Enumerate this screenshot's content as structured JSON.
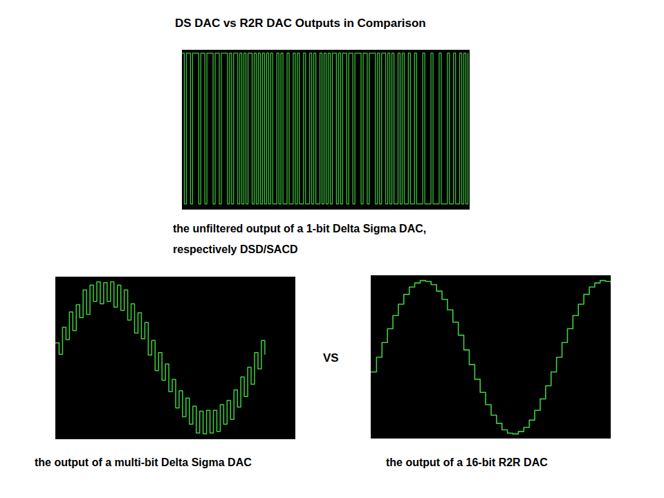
{
  "title": "DS DAC vs R2R DAC Outputs in Comparison",
  "annotation": "VS",
  "chart_data": [
    {
      "type": "line",
      "title": "the unfiltered output of a 1-bit Delta Sigma DAC,",
      "subtitle": "respectively DSD/SACD",
      "line_style": "step",
      "color": "#3fcf3f",
      "grid": false,
      "tick_labels": false,
      "xlim": [
        0,
        140
      ],
      "ylim": [
        -0.04,
        1.02
      ],
      "x": [
        0,
        1,
        2,
        3,
        4,
        5,
        6,
        7,
        8,
        9,
        10,
        11,
        12,
        13,
        14,
        15,
        16,
        17,
        18,
        19,
        20,
        21,
        22,
        23,
        24,
        25,
        26,
        27,
        28,
        29,
        30,
        31,
        32,
        33,
        34,
        35,
        36,
        37,
        38,
        39,
        40,
        41,
        42,
        43,
        44,
        45,
        46,
        47,
        48,
        49,
        50,
        51,
        52,
        53,
        54,
        55,
        56,
        57,
        58,
        59,
        60,
        61,
        62,
        63,
        64,
        65,
        66,
        67,
        68,
        69,
        70,
        71,
        72,
        73,
        74,
        75,
        76,
        77,
        78,
        79,
        80,
        81,
        82,
        83,
        84,
        85,
        86,
        87,
        88,
        89,
        90,
        91,
        92,
        93,
        94,
        95,
        96,
        97,
        98,
        99,
        100,
        101,
        102,
        103,
        104,
        105,
        106,
        107,
        108,
        109,
        110,
        111,
        112,
        113,
        114,
        115,
        116,
        117,
        118,
        119,
        120,
        121,
        122,
        123,
        124,
        125,
        126,
        127,
        128,
        129,
        130,
        131,
        132,
        133,
        134,
        135,
        136,
        137,
        138,
        139
      ],
      "values": [
        1,
        0,
        1,
        1,
        0,
        1,
        1,
        1,
        0,
        1,
        1,
        0,
        1,
        1,
        1,
        0,
        1,
        1,
        0,
        1,
        1,
        1,
        0,
        1,
        0,
        1,
        1,
        0,
        1,
        0,
        1,
        0,
        1,
        1,
        0,
        1,
        0,
        1,
        0,
        1,
        0,
        1,
        0,
        1,
        0,
        0,
        1,
        0,
        1,
        0,
        0,
        1,
        0,
        0,
        1,
        0,
        1,
        0,
        0,
        1,
        0,
        0,
        1,
        0,
        1,
        0,
        0,
        1,
        0,
        1,
        0,
        1,
        0,
        1,
        1,
        0,
        1,
        0,
        1,
        1,
        0,
        1,
        1,
        0,
        1,
        1,
        1,
        0,
        1,
        1,
        0,
        1,
        1,
        1,
        0,
        1,
        0,
        1,
        1,
        0,
        1,
        0,
        1,
        0,
        0,
        1,
        0,
        1,
        0,
        0,
        1,
        0,
        0,
        1,
        0,
        0,
        0,
        1,
        0,
        0,
        0,
        1,
        0,
        0,
        0,
        1,
        0,
        0,
        0,
        1,
        0,
        0,
        1,
        0,
        0,
        1,
        0,
        1,
        0,
        1
      ]
    },
    {
      "type": "line",
      "title": "the output of a multi-bit Delta Sigma DAC",
      "line_style": "step",
      "color": "#3fcf3f",
      "grid": false,
      "tick_labels": false,
      "xlim": [
        0,
        70
      ],
      "ylim": [
        -1,
        1
      ],
      "x": [
        0,
        1,
        2,
        3,
        4,
        5,
        6,
        7,
        8,
        9,
        10,
        11,
        12,
        13,
        14,
        15,
        16,
        17,
        18,
        19,
        20,
        21,
        22,
        23,
        24,
        25,
        26,
        27,
        28,
        29,
        30,
        31,
        32,
        33,
        34,
        35,
        36,
        37,
        38,
        39,
        40,
        41,
        42,
        43,
        44,
        45,
        46,
        47,
        48,
        49,
        50,
        51,
        52,
        53,
        54,
        55,
        56,
        57,
        58,
        59,
        60,
        61
      ],
      "values": [
        0.19,
        0.05,
        0.38,
        0.23,
        0.57,
        0.34,
        0.66,
        0.5,
        0.84,
        0.54,
        0.9,
        0.7,
        0.94,
        0.67,
        0.93,
        0.7,
        0.94,
        0.63,
        0.9,
        0.59,
        0.84,
        0.47,
        0.67,
        0.31,
        0.56,
        0.24,
        0.44,
        0.04,
        0.22,
        -0.15,
        0.07,
        -0.27,
        -0.07,
        -0.41,
        -0.26,
        -0.61,
        -0.4,
        -0.72,
        -0.49,
        -0.81,
        -0.59,
        -0.92,
        -0.65,
        -0.93,
        -0.64,
        -0.92,
        -0.64,
        -0.9,
        -0.57,
        -0.81,
        -0.52,
        -0.75,
        -0.39,
        -0.6,
        -0.23,
        -0.47,
        -0.11,
        -0.32,
        0.07,
        -0.13,
        0.22,
        0.05
      ]
    },
    {
      "type": "line",
      "title": "the output of a 16-bit R2R DAC",
      "line_style": "step",
      "color": "#3fcf3f",
      "grid": false,
      "tick_labels": false,
      "xlim": [
        0,
        44
      ],
      "ylim": [
        -1,
        1
      ],
      "x": [
        0,
        1,
        2,
        3,
        4,
        5,
        6,
        7,
        8,
        9,
        10,
        11,
        12,
        13,
        14,
        15,
        16,
        17,
        18,
        19,
        20,
        21,
        22,
        23,
        24,
        25,
        26,
        27,
        28,
        29,
        30,
        31,
        32,
        33,
        34,
        35,
        36,
        37,
        38,
        39,
        40,
        41,
        42,
        43,
        44
      ],
      "values": [
        -0.18,
        0,
        0.18,
        0.35,
        0.51,
        0.65,
        0.77,
        0.86,
        0.91,
        0.94,
        0.93,
        0.89,
        0.81,
        0.71,
        0.58,
        0.43,
        0.27,
        0.09,
        -0.09,
        -0.27,
        -0.43,
        -0.58,
        -0.71,
        -0.81,
        -0.89,
        -0.93,
        -0.94,
        -0.91,
        -0.86,
        -0.77,
        -0.65,
        -0.51,
        -0.35,
        -0.18,
        0,
        0.18,
        0.35,
        0.51,
        0.65,
        0.77,
        0.86,
        0.91,
        0.94,
        0.93,
        0.89
      ]
    }
  ]
}
